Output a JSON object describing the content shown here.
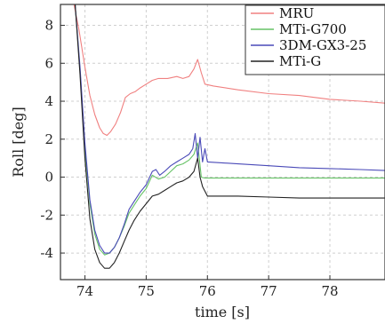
{
  "chart_data": {
    "type": "line",
    "title": "",
    "xlabel": "time [s]",
    "ylabel": "Roll [deg]",
    "xlim": [
      73.6,
      78.9
    ],
    "ylim": [
      -5.4,
      9.1
    ],
    "xticks": [
      74,
      75,
      76,
      77,
      78
    ],
    "yticks": [
      -4,
      -2,
      0,
      2,
      4,
      6,
      8
    ],
    "xtick_labels": [
      "74",
      "75",
      "76",
      "77",
      "78"
    ],
    "ytick_labels": [
      "-4",
      "-2",
      "0",
      "2",
      "4",
      "6",
      "8"
    ],
    "grid": true,
    "legend_position": "top-right",
    "series": [
      {
        "name": "MRU",
        "color": "#f08080",
        "x": [
          73.82,
          73.9,
          74.0,
          74.08,
          74.16,
          74.24,
          74.3,
          74.36,
          74.42,
          74.5,
          74.58,
          74.66,
          74.74,
          74.82,
          74.9,
          75.0,
          75.1,
          75.2,
          75.35,
          75.5,
          75.6,
          75.7,
          75.78,
          75.84,
          75.9,
          75.96,
          76.1,
          76.5,
          77.0,
          77.5,
          78.0,
          78.5,
          78.9
        ],
        "y": [
          9.1,
          7.8,
          5.8,
          4.3,
          3.3,
          2.6,
          2.3,
          2.2,
          2.4,
          2.8,
          3.4,
          4.2,
          4.4,
          4.5,
          4.7,
          4.9,
          5.1,
          5.2,
          5.2,
          5.3,
          5.2,
          5.3,
          5.7,
          6.2,
          5.5,
          4.9,
          4.8,
          4.6,
          4.4,
          4.3,
          4.1,
          4.0,
          3.9
        ]
      },
      {
        "name": "MTi-G700",
        "color": "#66c266",
        "x": [
          73.84,
          73.92,
          74.0,
          74.08,
          74.16,
          74.24,
          74.32,
          74.4,
          74.48,
          74.56,
          74.64,
          74.72,
          74.8,
          74.9,
          75.0,
          75.1,
          75.2,
          75.3,
          75.4,
          75.5,
          75.6,
          75.7,
          75.78,
          75.84,
          75.9,
          75.96,
          76.2,
          77.0,
          78.0,
          78.9
        ],
        "y": [
          9.1,
          5.6,
          1.5,
          -1.4,
          -3.0,
          -3.8,
          -4.1,
          -4.0,
          -3.7,
          -3.2,
          -2.6,
          -1.9,
          -1.5,
          -1.0,
          -0.6,
          0.1,
          -0.1,
          0.0,
          0.3,
          0.6,
          0.7,
          0.9,
          1.2,
          1.8,
          0.0,
          -0.05,
          -0.05,
          -0.05,
          -0.05,
          -0.05
        ]
      },
      {
        "name": "3DM-GX3-25",
        "color": "#4a4ab8",
        "x": [
          73.84,
          73.92,
          74.0,
          74.08,
          74.16,
          74.24,
          74.32,
          74.4,
          74.48,
          74.56,
          74.64,
          74.72,
          74.8,
          74.9,
          75.0,
          75.1,
          75.16,
          75.22,
          75.3,
          75.4,
          75.5,
          75.6,
          75.7,
          75.76,
          75.8,
          75.84,
          75.88,
          75.92,
          75.96,
          76.0,
          76.5,
          77.0,
          77.5,
          78.0,
          78.5,
          78.9
        ],
        "y": [
          9.1,
          5.8,
          1.8,
          -1.2,
          -2.8,
          -3.6,
          -4.0,
          -4.0,
          -3.7,
          -3.2,
          -2.5,
          -1.7,
          -1.3,
          -0.8,
          -0.4,
          0.3,
          0.4,
          0.1,
          0.3,
          0.6,
          0.8,
          1.0,
          1.2,
          1.5,
          2.3,
          1.0,
          2.1,
          0.8,
          1.5,
          0.8,
          0.7,
          0.6,
          0.5,
          0.45,
          0.4,
          0.35
        ]
      },
      {
        "name": "MTi-G",
        "color": "#222222",
        "x": [
          73.84,
          73.92,
          74.0,
          74.08,
          74.16,
          74.24,
          74.32,
          74.4,
          74.48,
          74.56,
          74.64,
          74.72,
          74.8,
          74.9,
          75.0,
          75.1,
          75.2,
          75.3,
          75.4,
          75.5,
          75.6,
          75.7,
          75.78,
          75.84,
          75.88,
          75.92,
          76.0,
          76.5,
          77.0,
          77.5,
          78.0,
          78.5,
          78.9
        ],
        "y": [
          9.1,
          5.4,
          1.0,
          -2.2,
          -3.8,
          -4.5,
          -4.8,
          -4.8,
          -4.5,
          -4.0,
          -3.4,
          -2.8,
          -2.3,
          -1.8,
          -1.4,
          -1.0,
          -0.9,
          -0.7,
          -0.5,
          -0.3,
          -0.2,
          0.0,
          0.3,
          1.0,
          0.0,
          -0.5,
          -1.0,
          -1.0,
          -1.05,
          -1.1,
          -1.1,
          -1.1,
          -1.1
        ]
      }
    ]
  }
}
